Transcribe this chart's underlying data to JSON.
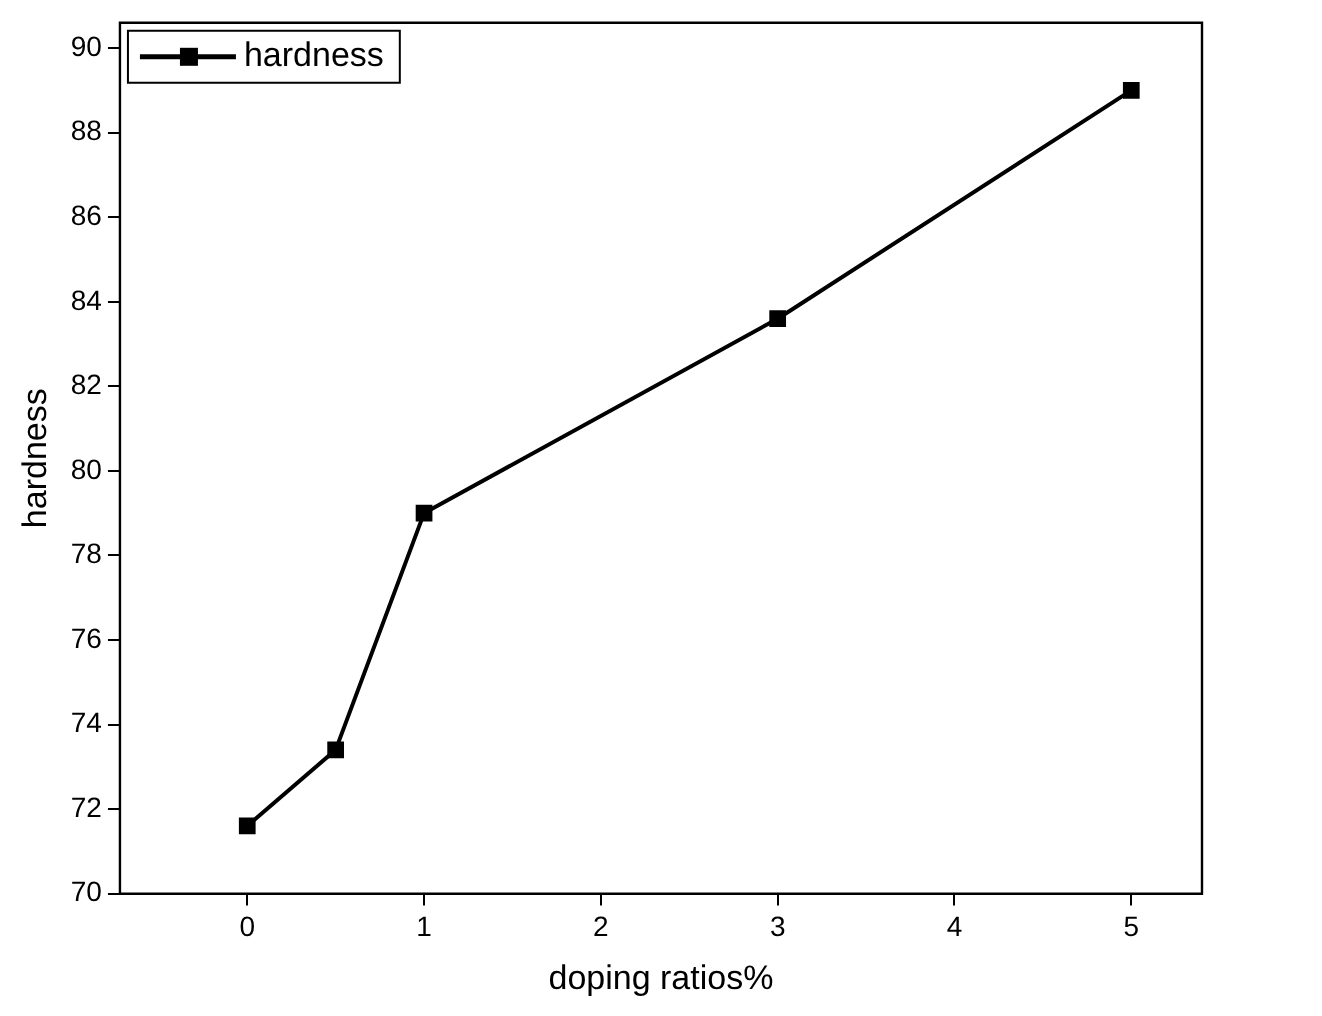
{
  "chart_data": {
    "type": "line",
    "xlabel": "doping ratios%",
    "ylabel": "hardness",
    "x": [
      0,
      0.5,
      1,
      3,
      5
    ],
    "series": [
      {
        "name": "hardness",
        "color": "#000000",
        "values": [
          71.6,
          73.4,
          79.0,
          83.6,
          89.0
        ]
      }
    ],
    "xlim": [
      -0.72,
      5.4
    ],
    "xticks": [
      0,
      1,
      2,
      3,
      4,
      5
    ],
    "ylim": [
      70,
      90.6
    ],
    "yticks": [
      70,
      72,
      74,
      76,
      78,
      80,
      82,
      84,
      86,
      88,
      90
    ],
    "grid": false,
    "legend": "top left",
    "marker": "square",
    "line_style": "solid"
  }
}
